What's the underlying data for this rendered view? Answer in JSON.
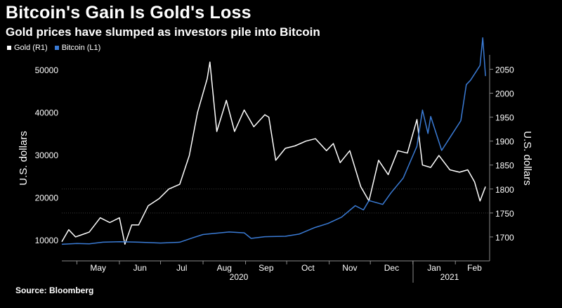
{
  "title": "Bitcoin's Gain Is Gold's Loss",
  "subtitle": "Gold prices have slumped as investors pile into Bitcoin",
  "source": "Source: Bloomberg",
  "legend": [
    {
      "label": "Gold (R1)",
      "color": "#ffffff"
    },
    {
      "label": "Bitcoin (L1)",
      "color": "#3a7bd5"
    }
  ],
  "chart_data": {
    "type": "line",
    "title": "Bitcoin's Gain Is Gold's Loss",
    "subtitle": "Gold prices have slumped as investors pile into Bitcoin",
    "xlabel": "",
    "ylabel_left": "U.S. dollars",
    "ylabel_right": "U.S. dollars",
    "x_tick_labels": [
      "May",
      "Jun",
      "Jul",
      "Aug",
      "Sep",
      "Oct",
      "Nov",
      "Dec",
      "Jan",
      "Feb"
    ],
    "x_year_labels": [
      "2020",
      "2021"
    ],
    "y_left": {
      "ticks": [
        10000,
        20000,
        30000,
        40000,
        50000
      ],
      "range": [
        5000,
        53500
      ]
    },
    "y_right": {
      "ticks": [
        1700,
        1750,
        1800,
        1850,
        1900,
        1950,
        2000,
        2050
      ],
      "range": [
        1650,
        2080
      ]
    },
    "grid": false,
    "series": [
      {
        "name": "Bitcoin (L1)",
        "axis": "left",
        "color": "#3a7bd5",
        "points": [
          [
            "2020-04-20",
            8900
          ],
          [
            "2020-05-01",
            9100
          ],
          [
            "2020-05-10",
            9000
          ],
          [
            "2020-05-20",
            9400
          ],
          [
            "2020-06-01",
            9500
          ],
          [
            "2020-06-15",
            9400
          ],
          [
            "2020-07-01",
            9200
          ],
          [
            "2020-07-15",
            9400
          ],
          [
            "2020-07-25",
            10500
          ],
          [
            "2020-08-01",
            11200
          ],
          [
            "2020-08-10",
            11500
          ],
          [
            "2020-08-20",
            11800
          ],
          [
            "2020-08-31",
            11600
          ],
          [
            "2020-09-05",
            10300
          ],
          [
            "2020-09-15",
            10700
          ],
          [
            "2020-09-30",
            10800
          ],
          [
            "2020-10-10",
            11300
          ],
          [
            "2020-10-21",
            12800
          ],
          [
            "2020-10-31",
            13800
          ],
          [
            "2020-11-10",
            15300
          ],
          [
            "2020-11-20",
            18000
          ],
          [
            "2020-11-26",
            17000
          ],
          [
            "2020-11-30",
            19200
          ],
          [
            "2020-12-10",
            18300
          ],
          [
            "2020-12-16",
            21000
          ],
          [
            "2020-12-25",
            24500
          ],
          [
            "2020-12-31",
            29000
          ],
          [
            "2021-01-04",
            32000
          ],
          [
            "2021-01-08",
            40500
          ],
          [
            "2021-01-12",
            35000
          ],
          [
            "2021-01-14",
            39000
          ],
          [
            "2021-01-22",
            31000
          ],
          [
            "2021-01-29",
            34500
          ],
          [
            "2021-02-05",
            38000
          ],
          [
            "2021-02-09",
            46500
          ],
          [
            "2021-02-12",
            47500
          ],
          [
            "2021-02-16",
            49500
          ],
          [
            "2021-02-19",
            51000
          ],
          [
            "2021-02-21",
            57500
          ],
          [
            "2021-02-23",
            48500
          ]
        ]
      },
      {
        "name": "Gold (R1)",
        "axis": "right",
        "color": "#ffffff",
        "points": [
          [
            "2020-04-20",
            1690
          ],
          [
            "2020-04-25",
            1715
          ],
          [
            "2020-04-30",
            1700
          ],
          [
            "2020-05-05",
            1705
          ],
          [
            "2020-05-10",
            1710
          ],
          [
            "2020-05-18",
            1740
          ],
          [
            "2020-05-25",
            1730
          ],
          [
            "2020-06-01",
            1740
          ],
          [
            "2020-06-05",
            1685
          ],
          [
            "2020-06-10",
            1725
          ],
          [
            "2020-06-15",
            1725
          ],
          [
            "2020-06-22",
            1765
          ],
          [
            "2020-06-30",
            1780
          ],
          [
            "2020-07-07",
            1800
          ],
          [
            "2020-07-15",
            1810
          ],
          [
            "2020-07-22",
            1870
          ],
          [
            "2020-07-28",
            1960
          ],
          [
            "2020-08-04",
            2030
          ],
          [
            "2020-08-06",
            2065
          ],
          [
            "2020-08-11",
            1920
          ],
          [
            "2020-08-18",
            1985
          ],
          [
            "2020-08-24",
            1920
          ],
          [
            "2020-08-31",
            1965
          ],
          [
            "2020-09-07",
            1930
          ],
          [
            "2020-09-15",
            1955
          ],
          [
            "2020-09-18",
            1950
          ],
          [
            "2020-09-23",
            1860
          ],
          [
            "2020-09-30",
            1885
          ],
          [
            "2020-10-07",
            1890
          ],
          [
            "2020-10-15",
            1900
          ],
          [
            "2020-10-22",
            1905
          ],
          [
            "2020-10-30",
            1880
          ],
          [
            "2020-11-04",
            1895
          ],
          [
            "2020-11-09",
            1855
          ],
          [
            "2020-11-16",
            1880
          ],
          [
            "2020-11-24",
            1805
          ],
          [
            "2020-11-30",
            1775
          ],
          [
            "2020-12-07",
            1860
          ],
          [
            "2020-12-14",
            1830
          ],
          [
            "2020-12-21",
            1880
          ],
          [
            "2020-12-28",
            1875
          ],
          [
            "2021-01-04",
            1945
          ],
          [
            "2021-01-08",
            1850
          ],
          [
            "2021-01-14",
            1845
          ],
          [
            "2021-01-20",
            1870
          ],
          [
            "2021-01-28",
            1840
          ],
          [
            "2021-02-04",
            1835
          ],
          [
            "2021-02-10",
            1840
          ],
          [
            "2021-02-15",
            1815
          ],
          [
            "2021-02-19",
            1775
          ],
          [
            "2021-02-23",
            1805
          ]
        ]
      }
    ]
  }
}
